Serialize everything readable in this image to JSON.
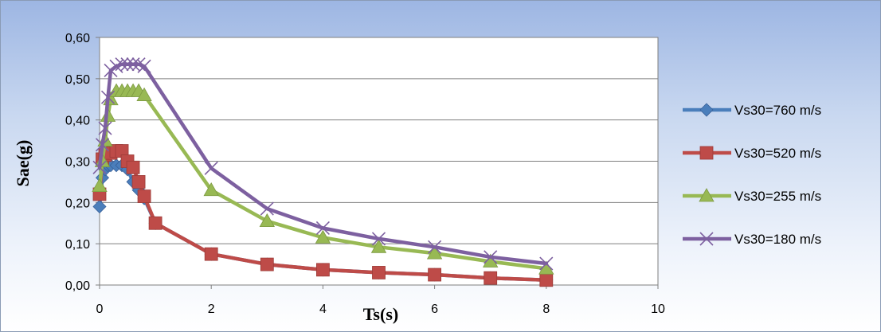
{
  "chart_data": {
    "type": "line",
    "title": "",
    "xlabel": "Ts(s)",
    "ylabel": "Sae(g)",
    "xlim": [
      0,
      10
    ],
    "ylim": [
      0,
      0.6
    ],
    "x_ticks": [
      0,
      2,
      4,
      6,
      8,
      10
    ],
    "x_tick_labels": [
      "0",
      "2",
      "4",
      "6",
      "8",
      "10"
    ],
    "y_ticks": [
      0,
      0.1,
      0.2,
      0.3,
      0.4,
      0.5,
      0.6
    ],
    "y_tick_labels": [
      "0,00",
      "0,10",
      "0,20",
      "0,30",
      "0,40",
      "0,50",
      "0,60"
    ],
    "grid": "horizontal",
    "legend": "right",
    "series": [
      {
        "name": "Vs30=760 m/s",
        "color": "#4a7ebb",
        "marker": "diamond",
        "x": [
          0,
          0.05,
          0.1,
          0.15,
          0.2,
          0.3,
          0.4,
          0.5,
          0.6,
          0.7,
          0.8,
          1,
          2,
          3,
          4,
          5,
          6,
          7,
          8
        ],
        "y": [
          0.19,
          0.26,
          0.28,
          0.29,
          0.29,
          0.29,
          0.29,
          0.28,
          0.25,
          0.23,
          0.21,
          0.15,
          0.075,
          0.05,
          0.037,
          0.03,
          0.025,
          0.017,
          0.012
        ]
      },
      {
        "name": "Vs30=520 m/s",
        "color": "#be4b48",
        "marker": "square",
        "x": [
          0,
          0.05,
          0.1,
          0.15,
          0.2,
          0.3,
          0.4,
          0.5,
          0.6,
          0.7,
          0.8,
          1,
          2,
          3,
          4,
          5,
          6,
          7,
          8
        ],
        "y": [
          0.22,
          0.305,
          0.315,
          0.32,
          0.32,
          0.325,
          0.325,
          0.3,
          0.285,
          0.25,
          0.215,
          0.15,
          0.075,
          0.05,
          0.037,
          0.03,
          0.025,
          0.017,
          0.012
        ]
      },
      {
        "name": "Vs30=255 m/s",
        "color": "#98b954",
        "marker": "triangle",
        "x": [
          0,
          0.05,
          0.1,
          0.15,
          0.2,
          0.3,
          0.4,
          0.5,
          0.6,
          0.7,
          0.8,
          2,
          3,
          4,
          5,
          6,
          7,
          8
        ],
        "y": [
          0.24,
          0.3,
          0.35,
          0.41,
          0.45,
          0.47,
          0.47,
          0.47,
          0.47,
          0.47,
          0.46,
          0.23,
          0.155,
          0.115,
          0.092,
          0.077,
          0.057,
          0.04
        ]
      },
      {
        "name": "Vs30=180 m/s",
        "color": "#7d60a0",
        "marker": "x",
        "x": [
          0,
          0.05,
          0.1,
          0.15,
          0.2,
          0.3,
          0.4,
          0.5,
          0.6,
          0.7,
          0.8,
          2,
          3,
          4,
          5,
          6,
          7,
          8
        ],
        "y": [
          0.285,
          0.34,
          0.38,
          0.455,
          0.52,
          0.53,
          0.535,
          0.535,
          0.535,
          0.535,
          0.53,
          0.283,
          0.185,
          0.138,
          0.112,
          0.092,
          0.068,
          0.052
        ]
      }
    ]
  }
}
